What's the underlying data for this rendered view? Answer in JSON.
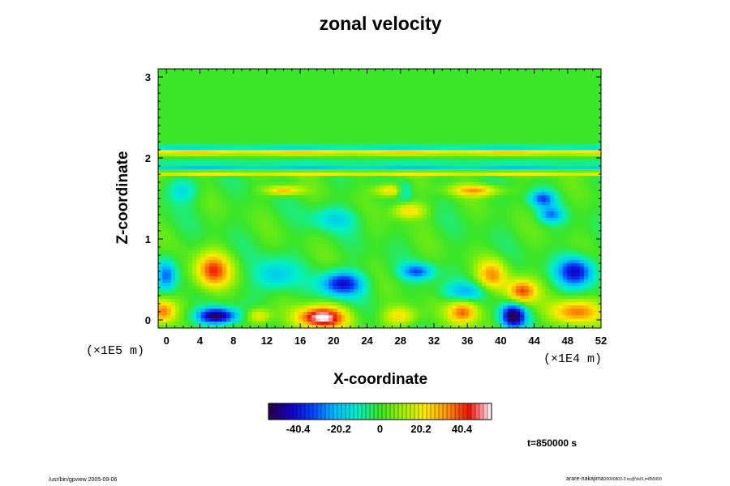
{
  "chart_data": {
    "type": "heatmap",
    "title": "zonal velocity",
    "xlabel": "X-coordinate",
    "ylabel": "Z-coordinate",
    "x_scale_label": "(×1E4 m)",
    "y_scale_label": "(×1E5 m)",
    "xlim": [
      -1,
      52
    ],
    "ylim": [
      -0.1,
      3.1
    ],
    "x_ticks": [
      0,
      4,
      8,
      12,
      16,
      20,
      24,
      28,
      32,
      36,
      40,
      44,
      48,
      52
    ],
    "y_ticks": [
      0,
      1,
      2,
      3
    ],
    "colorbar": {
      "min": -55,
      "max": 55,
      "tick_values": [
        -40.4,
        -20.2,
        0,
        20.2,
        40.4
      ],
      "tick_labels": [
        "-40.4",
        "-20.2",
        "0",
        "20.2",
        "40.4"
      ]
    },
    "bands": [
      {
        "z": 2.07,
        "value": 25,
        "width": 0.035
      },
      {
        "z": 2.13,
        "value": -18,
        "width": 0.03
      },
      {
        "z": 1.88,
        "value": -18,
        "width": 0.03
      },
      {
        "z": 1.81,
        "value": 22,
        "width": 0.03
      },
      {
        "z": 1.95,
        "value": -8,
        "width": 0.035
      }
    ],
    "features": [
      {
        "x": 6,
        "z": 0.05,
        "value": -55,
        "sx": 2.4,
        "sz": 0.1
      },
      {
        "x": 18.5,
        "z": 0.03,
        "value": 55,
        "sx": 3.0,
        "sz": 0.14
      },
      {
        "x": 41.5,
        "z": 0.05,
        "value": -55,
        "sx": 1.5,
        "sz": 0.15
      },
      {
        "x": 5.5,
        "z": 0.6,
        "value": 40,
        "sx": 2.2,
        "sz": 0.22
      },
      {
        "x": 21,
        "z": 0.45,
        "value": -42,
        "sx": 2.5,
        "sz": 0.15
      },
      {
        "x": 30,
        "z": 0.6,
        "value": -30,
        "sx": 2.0,
        "sz": 0.1
      },
      {
        "x": 39,
        "z": 0.55,
        "value": 30,
        "sx": 1.8,
        "sz": 0.2
      },
      {
        "x": 42.5,
        "z": 0.35,
        "value": 40,
        "sx": 1.8,
        "sz": 0.15
      },
      {
        "x": 49,
        "z": 0.6,
        "value": -42,
        "sx": 2.2,
        "sz": 0.18
      },
      {
        "x": 49,
        "z": 0.1,
        "value": 35,
        "sx": 3.0,
        "sz": 0.15
      },
      {
        "x": 35.5,
        "z": 0.1,
        "value": 38,
        "sx": 1.8,
        "sz": 0.15
      },
      {
        "x": 28,
        "z": 0.05,
        "value": 25,
        "sx": 2.0,
        "sz": 0.12
      },
      {
        "x": -0.5,
        "z": 0.1,
        "value": 35,
        "sx": 1.5,
        "sz": 0.15
      },
      {
        "x": 0,
        "z": 0.55,
        "value": -30,
        "sx": 1.2,
        "sz": 0.2
      },
      {
        "x": 13,
        "z": 0.55,
        "value": -20,
        "sx": 2.5,
        "sz": 0.2
      },
      {
        "x": 11,
        "z": 0.05,
        "value": 25,
        "sx": 1.5,
        "sz": 0.1
      },
      {
        "x": 36,
        "z": 0.35,
        "value": -20,
        "sx": 3.0,
        "sz": 0.12
      },
      {
        "x": 14,
        "z": 1.6,
        "value": 30,
        "sx": 2.2,
        "sz": 0.06
      },
      {
        "x": 27,
        "z": 1.6,
        "value": 30,
        "sx": 2.0,
        "sz": 0.08
      },
      {
        "x": 37,
        "z": 1.6,
        "value": 30,
        "sx": 3.0,
        "sz": 0.07
      },
      {
        "x": 29,
        "z": 1.35,
        "value": 25,
        "sx": 2.0,
        "sz": 0.1
      },
      {
        "x": 28.5,
        "z": 1.6,
        "value": -25,
        "sx": 1.0,
        "sz": 0.1
      },
      {
        "x": 45,
        "z": 1.5,
        "value": -30,
        "sx": 1.5,
        "sz": 0.1
      },
      {
        "x": 46,
        "z": 1.3,
        "value": -25,
        "sx": 1.5,
        "sz": 0.1
      },
      {
        "x": 2,
        "z": 1.6,
        "value": -15,
        "sx": 2.0,
        "sz": 0.15
      },
      {
        "x": 20,
        "z": 1.25,
        "value": -15,
        "sx": 3.0,
        "sz": 0.15
      }
    ]
  },
  "timestamp": "t=850000 s",
  "footer_left": "/usr/bin/gpview 2005-09-06",
  "footer_right_main": "arare-nakajima",
  "footer_right_sub": "20000803-3.nc@VelX,t=850000"
}
